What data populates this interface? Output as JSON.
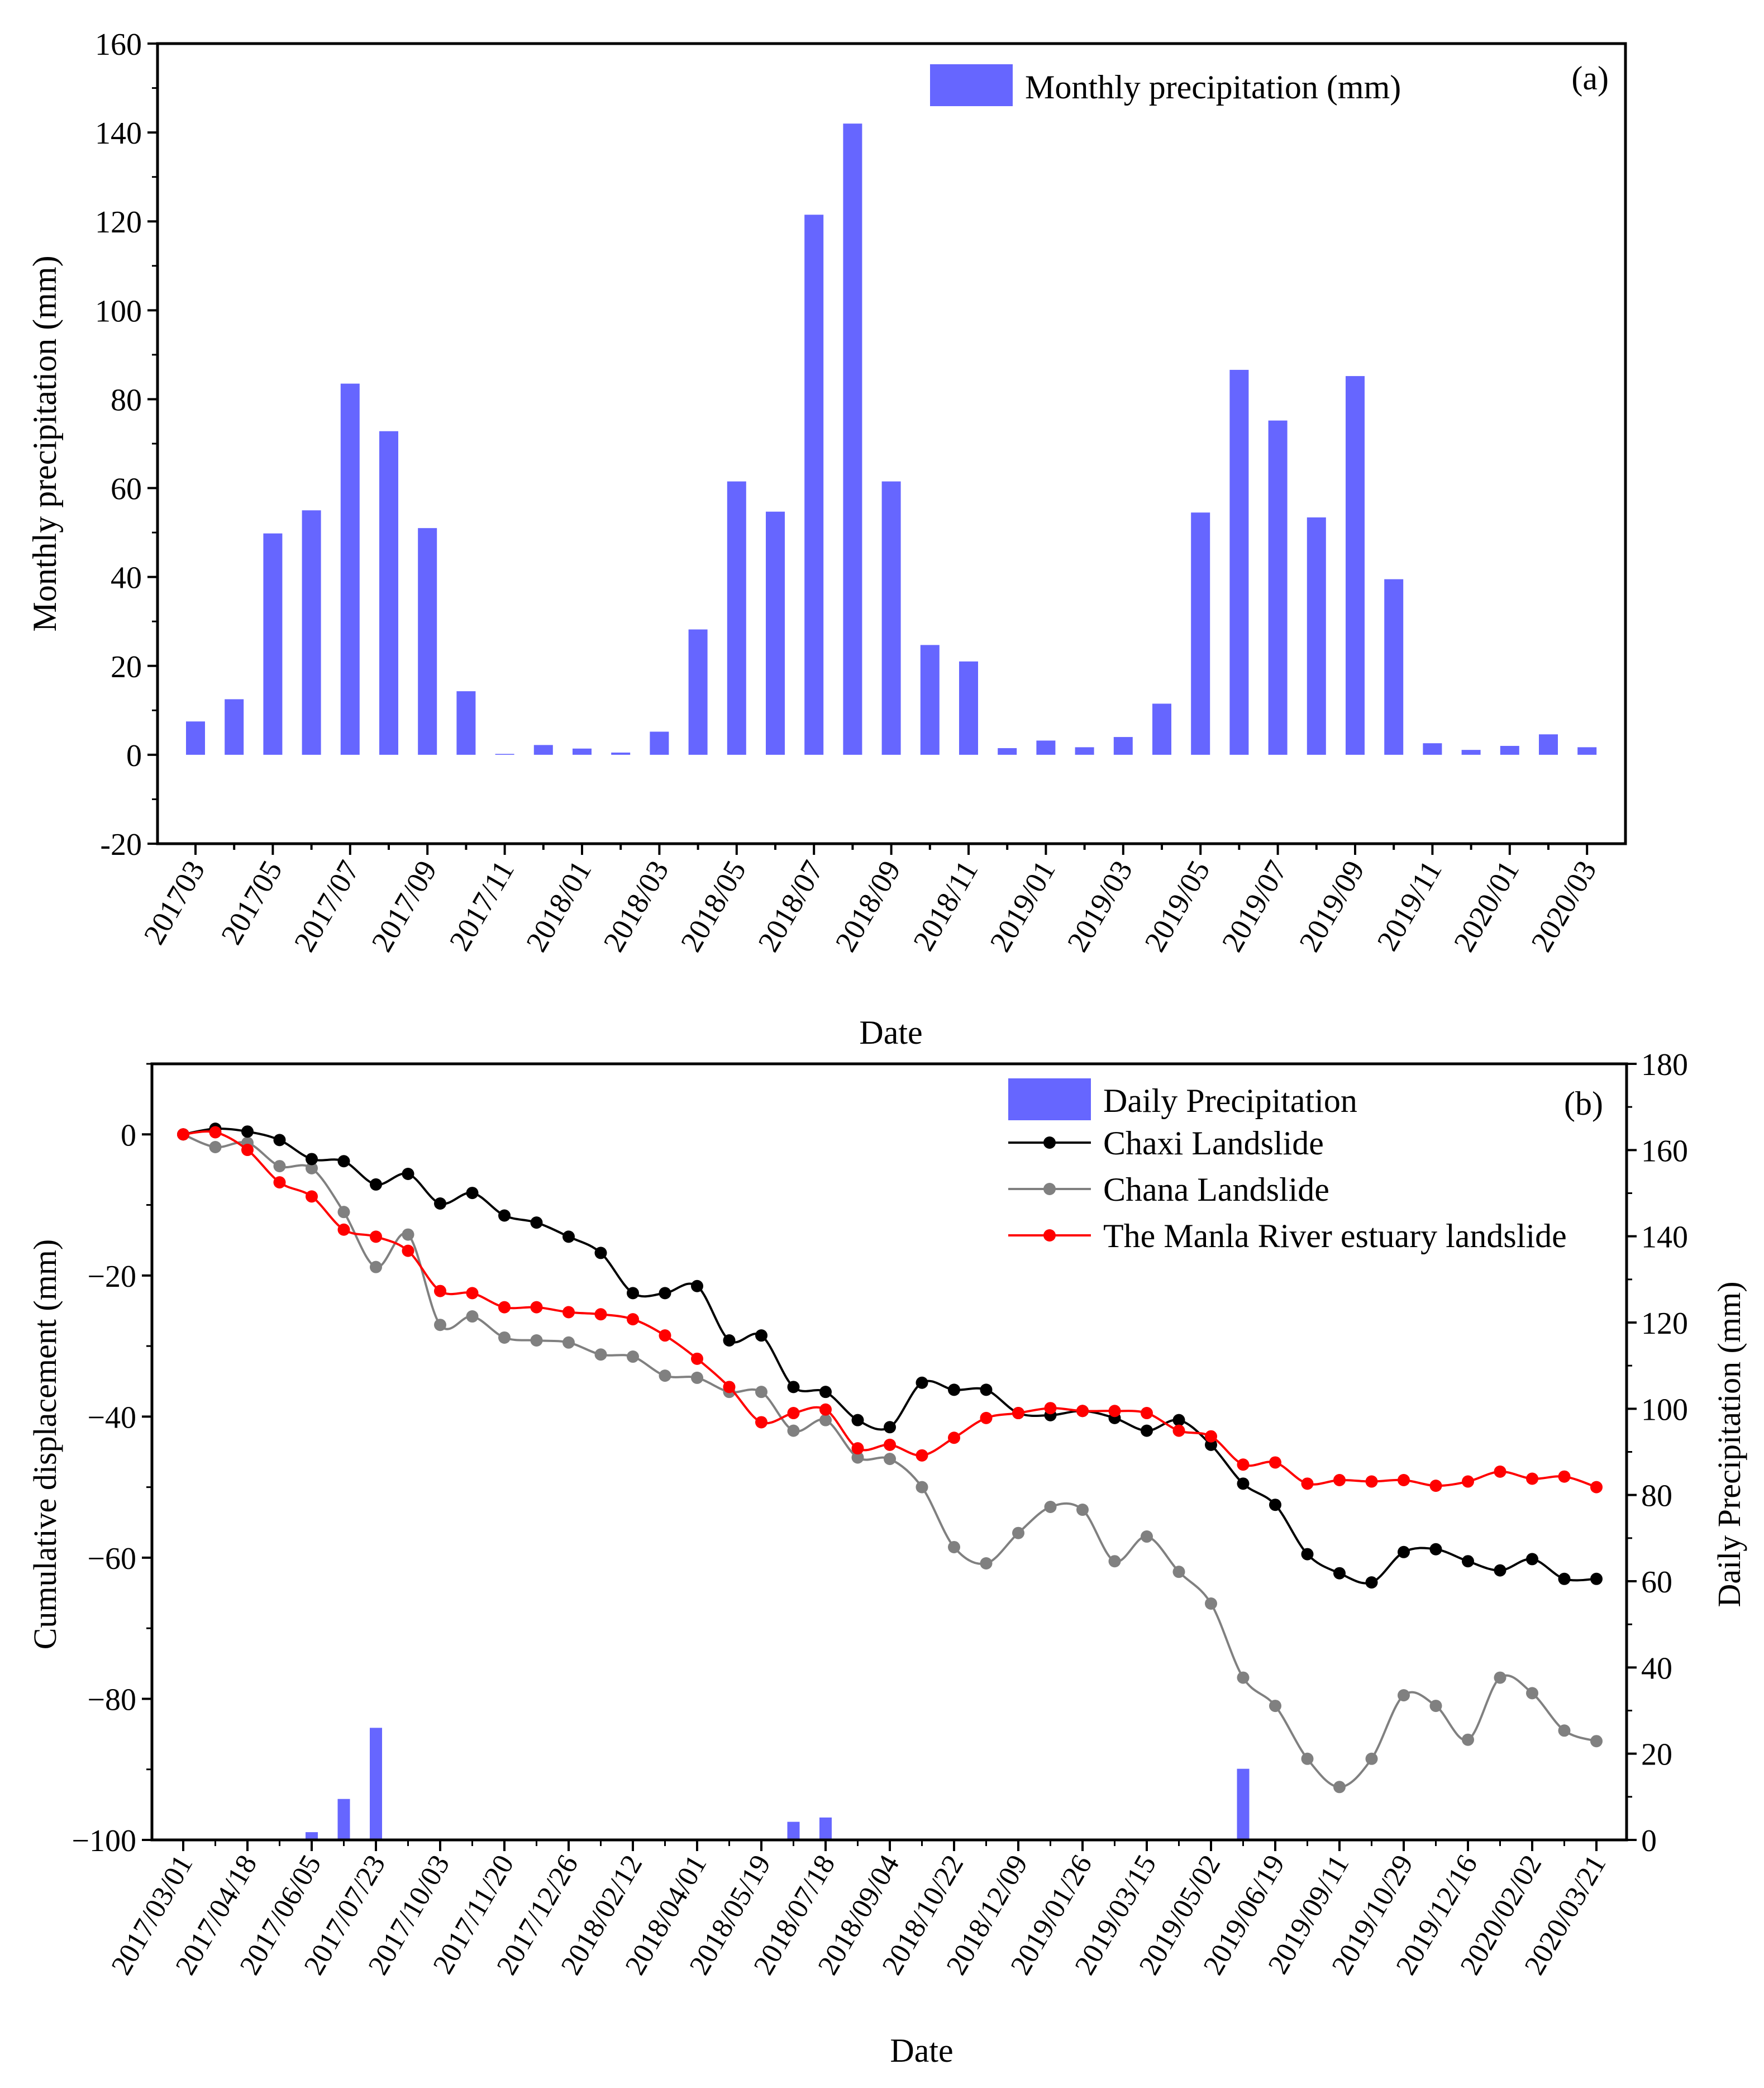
{
  "chart_data": [
    {
      "type": "bar",
      "panel_label": "(a)",
      "title": "",
      "xlabel": "Date",
      "ylabel": "Monthly precipitation (mm)",
      "ylim": [
        -20,
        160
      ],
      "yticks": [
        -20,
        0,
        20,
        40,
        60,
        80,
        100,
        120,
        140,
        160
      ],
      "legend": {
        "position": "top-right",
        "label": "Monthly precipitation (mm)"
      },
      "bar_color": "#6666ff",
      "categories": [
        "201703",
        "201704",
        "201705",
        "201706",
        "2017/07",
        "2017/08",
        "2017/09",
        "2017/10",
        "2017/11",
        "2017/12",
        "2018/01",
        "2018/02",
        "2018/03",
        "2018/04",
        "2018/05",
        "2018/06",
        "2018/07",
        "2018/08",
        "2018/09",
        "2018/10",
        "2018/11",
        "2018/12",
        "2019/01",
        "2019/02",
        "2019/03",
        "2019/04",
        "2019/05",
        "2019/06",
        "2019/07",
        "2019/08",
        "2019/09",
        "2019/10",
        "2019/11",
        "2019/12",
        "2020/01",
        "2020/02",
        "2020/03"
      ],
      "tick_labels": [
        "201703",
        "201705",
        "2017/07",
        "2017/09",
        "2017/11",
        "2018/01",
        "2018/03",
        "2018/05",
        "2018/07",
        "2018/09",
        "2018/11",
        "2019/01",
        "2019/03",
        "2019/05",
        "2019/07",
        "2019/09",
        "2019/11",
        "2020/01",
        "2020/03"
      ],
      "values": [
        7.5,
        12.5,
        49.8,
        55,
        83.5,
        72.8,
        51,
        14.3,
        0.2,
        2.2,
        1.4,
        0.5,
        5.2,
        28.2,
        61.5,
        54.7,
        121.5,
        142,
        61.5,
        24.7,
        21,
        1.5,
        3.2,
        1.7,
        4,
        11.5,
        54.5,
        86.6,
        75.2,
        53.4,
        85.2,
        39.5,
        2.6,
        1.1,
        2,
        4.6,
        1.7
      ]
    },
    {
      "type": "line",
      "panel_label": "(b)",
      "title": "",
      "xlabel": "Date",
      "ylabel": "Cumulative displacement (mm)",
      "y2label": "Daily Precipitation (mm)",
      "ylim": [
        -100,
        10
      ],
      "yticks": [
        -100,
        -80,
        -60,
        -40,
        -20,
        0
      ],
      "y2lim": [
        0,
        180
      ],
      "y2ticks": [
        0,
        20,
        40,
        60,
        80,
        100,
        120,
        140,
        160,
        180
      ],
      "legend": {
        "position": "top-right"
      },
      "tick_labels": [
        "2017/03/01",
        "2017/04/18",
        "2017/06/05",
        "2017/07/23",
        "2017/10/03",
        "2017/11/20",
        "2017/12/26",
        "2018/02/12",
        "2018/04/01",
        "2018/05/19",
        "2018/07/18",
        "2018/09/04",
        "2018/10/22",
        "2018/12/09",
        "2019/01/26",
        "2019/03/15",
        "2019/05/02",
        "2019/06/19",
        "2019/09/11",
        "2019/10/29",
        "2019/12/16",
        "2020/02/02",
        "2020/03/21"
      ],
      "x_index_max": 44,
      "series": [
        {
          "name": "Chaxi Landslide",
          "color": "#000000",
          "values": [
            0,
            0.8,
            0.4,
            -0.8,
            -3.5,
            -3.8,
            -7.1,
            -5.6,
            -9.8,
            -8.3,
            -11.5,
            -12.5,
            -14.5,
            -16.8,
            -22.5,
            -22.5,
            -21.5,
            -29.2,
            -28.5,
            -35.8,
            -36.5,
            -40.5,
            -41.5,
            -35.2,
            -36.2,
            -36.2,
            -39.5,
            -39.8,
            -39.2,
            -40.2,
            -42,
            -40.5,
            -44,
            -49.5,
            -52.5,
            -59.5,
            -62.2,
            -63.5,
            -59.2,
            -58.8,
            -60.5,
            -61.8,
            -60.2,
            -63,
            -63
          ]
        },
        {
          "name": "Chana Landslide",
          "color": "#808080",
          "values": [
            0,
            -1.8,
            -1.2,
            -4.5,
            -4.8,
            -11,
            -18.8,
            -14.2,
            -27,
            -25.8,
            -28.8,
            -29.2,
            -29.5,
            -31.2,
            -31.5,
            -34.2,
            -34.5,
            -36.5,
            -36.5,
            -42,
            -40.5,
            -45.8,
            -46,
            -50,
            -58.5,
            -60.8,
            -56.5,
            -52.8,
            -53.2,
            -60.5,
            -57,
            -62,
            -66.5,
            -77,
            -81,
            -88.5,
            -92.5,
            -88.5,
            -79.5,
            -81,
            -85.8,
            -77,
            -79.2,
            -84.5,
            -86
          ]
        },
        {
          "name": "The Manla River estuary landslide",
          "color": "#ff0000",
          "values": [
            0,
            0.3,
            -2.2,
            -6.8,
            -8.8,
            -13.5,
            -14.5,
            -16.5,
            -22.2,
            -22.5,
            -24.5,
            -24.5,
            -25.2,
            -25.5,
            -26.2,
            -28.5,
            -31.8,
            -35.8,
            -40.8,
            -39.5,
            -39,
            -44.5,
            -44,
            -45.5,
            -43,
            -40.2,
            -39.5,
            -38.8,
            -39.2,
            -39.2,
            -39.5,
            -42,
            -42.8,
            -46.8,
            -46.5,
            -49.5,
            -49,
            -49.2,
            -49,
            -49.8,
            -49.2,
            -47.8,
            -48.8,
            -48.5,
            -50
          ]
        }
      ],
      "daily_precipitation": {
        "name": "Daily Precipitation",
        "color": "#6666ff",
        "x_index": [
          4,
          5,
          6,
          19,
          20,
          33
        ],
        "values": [
          1.8,
          9.5,
          26,
          4.2,
          5.2,
          16.5
        ]
      }
    }
  ]
}
